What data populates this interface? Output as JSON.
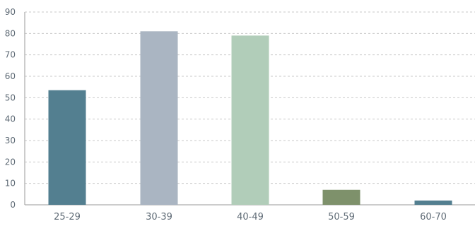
{
  "chart_data": {
    "type": "bar",
    "title": "",
    "xlabel": "",
    "ylabel": "",
    "categories": [
      "25-29",
      "30-39",
      "40-49",
      "50-59",
      "60-70"
    ],
    "values": [
      53.5,
      81,
      79,
      7,
      2
    ],
    "bar_colors": [
      "#537f90",
      "#aab5c2",
      "#b1cdb9",
      "#7e916b",
      "#537f90"
    ],
    "ylim": [
      0,
      90
    ],
    "yticks": [
      0,
      10,
      20,
      30,
      40,
      50,
      60,
      70,
      80,
      90
    ],
    "grid": true,
    "legend": "none"
  }
}
